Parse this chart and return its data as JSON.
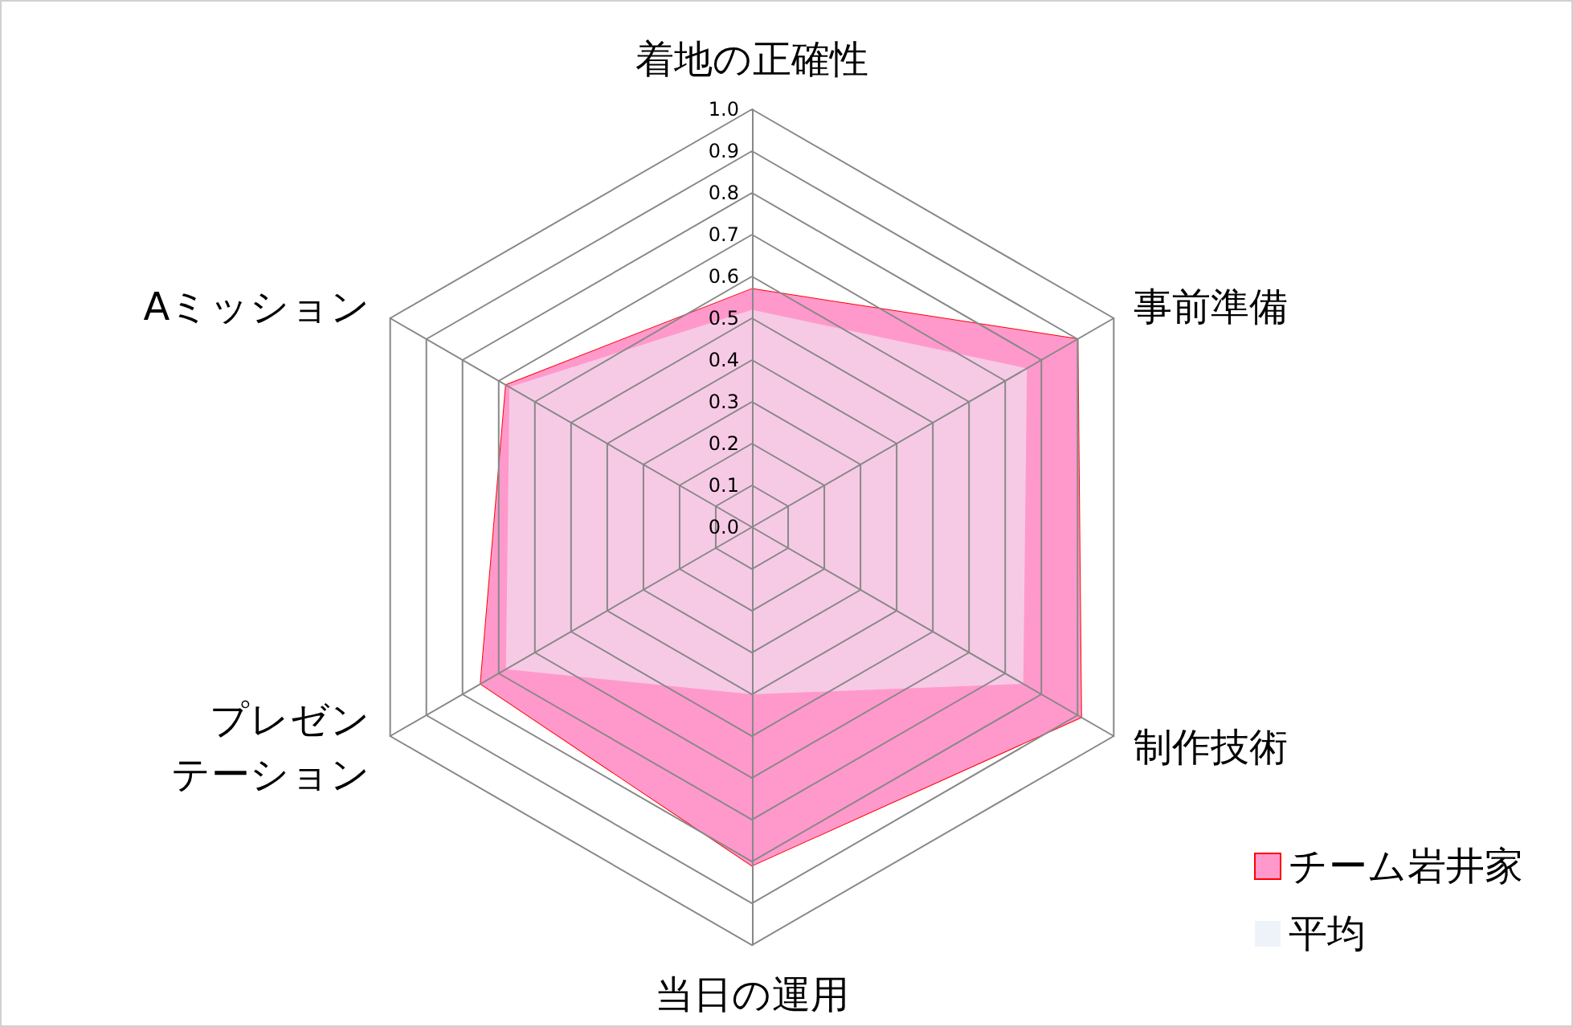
{
  "chart_data": {
    "type": "radar",
    "categories": [
      "着地の正確性",
      "事前準備",
      "制作技術",
      "当日の運用",
      "プレゼンテーション",
      "Aミッション"
    ],
    "series": [
      {
        "name": "チーム岩井家",
        "color": "#ff99cc",
        "values": [
          0.57,
          0.9,
          0.91,
          0.81,
          0.75,
          0.68
        ]
      },
      {
        "name": "平均",
        "color": "#eef3fa",
        "values": [
          0.52,
          0.76,
          0.75,
          0.4,
          0.68,
          0.67
        ]
      }
    ],
    "ylim": [
      0,
      1
    ],
    "yticks": [
      {
        "value": 0,
        "label": "0.0"
      },
      {
        "value": 0.1,
        "label": "0.1"
      },
      {
        "value": 0.2,
        "label": "0.2"
      },
      {
        "value": 0.3,
        "label": "0.3"
      },
      {
        "value": 0.4,
        "label": "0.4"
      },
      {
        "value": 0.5,
        "label": "0.5"
      },
      {
        "value": 0.6,
        "label": "0.6"
      },
      {
        "value": 0.7,
        "label": "0.7"
      },
      {
        "value": 0.8,
        "label": "0.8"
      },
      {
        "value": 0.9,
        "label": "0.9"
      },
      {
        "value": 1,
        "label": "1.0"
      }
    ],
    "legend": "bottom right",
    "grid": true
  }
}
